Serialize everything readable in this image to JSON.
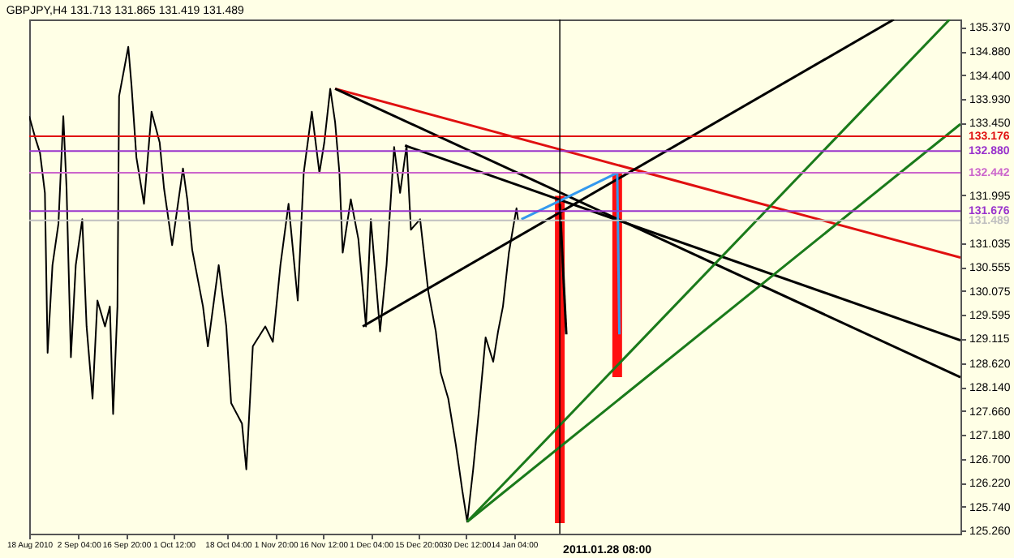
{
  "chart_data": {
    "type": "line",
    "title": "GBPJPY,H4 131.713 131.865 131.419 131.489",
    "xlim": [
      "2010-08-18T00:00",
      "2011-05-31T16:00"
    ],
    "ylim": [
      125.2,
      135.52
    ],
    "xticks": [
      {
        "value": "2010-08-18T00:00",
        "label": "18 Aug 2010"
      },
      {
        "value": "2010-09-02T04:00",
        "label": "2 Sep 04:00"
      },
      {
        "value": "2010-09-16T20:00",
        "label": "16 Sep 20:00"
      },
      {
        "value": "2010-10-01T12:00",
        "label": "1 Oct 12:00"
      },
      {
        "value": "2010-10-18T04:00",
        "label": "18 Oct 04:00"
      },
      {
        "value": "2010-11-01T20:00",
        "label": "1 Nov 20:00"
      },
      {
        "value": "2010-11-16T12:00",
        "label": "16 Nov 12:00"
      },
      {
        "value": "2010-12-01T04:00",
        "label": "1 Dec 04:00"
      },
      {
        "value": "2010-12-15T20:00",
        "label": "15 Dec 20:00"
      },
      {
        "value": "2010-12-30T12:00",
        "label": "30 Dec 12:00"
      },
      {
        "value": "2011-01-14T04:00",
        "label": "14 Jan 04:00"
      }
    ],
    "yticks": [
      {
        "value": 135.37,
        "label": "135.370"
      },
      {
        "value": 134.88,
        "label": "134.880"
      },
      {
        "value": 134.4,
        "label": "134.400"
      },
      {
        "value": 133.93,
        "label": "133.930"
      },
      {
        "value": 133.45,
        "label": "133.450"
      },
      {
        "value": 131.995,
        "label": "131.995"
      },
      {
        "value": 131.035,
        "label": "131.035"
      },
      {
        "value": 130.555,
        "label": "130.555"
      },
      {
        "value": 130.075,
        "label": "130.075"
      },
      {
        "value": 129.595,
        "label": "129.595"
      },
      {
        "value": 129.115,
        "label": "129.115"
      },
      {
        "value": 128.62,
        "label": "128.620"
      },
      {
        "value": 128.14,
        "label": "128.140"
      },
      {
        "value": 127.66,
        "label": "127.660"
      },
      {
        "value": 127.18,
        "label": "127.180"
      },
      {
        "value": 126.7,
        "label": "126.700"
      },
      {
        "value": 126.22,
        "label": "126.220"
      },
      {
        "value": 125.74,
        "label": "125.740"
      },
      {
        "value": 125.26,
        "label": "125.260"
      }
    ],
    "grid": false,
    "line_style": "solid",
    "marker": "none",
    "series": [
      {
        "color": "#000000",
        "x": [
          "2010-08-18T00:00",
          "2010-08-19T20:00",
          "2010-08-21T08:00",
          "2010-08-22T20:00",
          "2010-08-23T16:00",
          "2010-08-25T04:00",
          "2010-08-27T00:00",
          "2010-08-28T12:00",
          "2010-08-29T12:00",
          "2010-08-30T20:00",
          "2010-09-01T08:00",
          "2010-09-03T08:00",
          "2010-09-04T16:00",
          "2010-09-06T12:00",
          "2010-09-08T00:00",
          "2010-09-10T08:00",
          "2010-09-11T20:00",
          "2010-09-12T20:00",
          "2010-09-14T04:00",
          "2010-09-14T16:00",
          "2010-09-17T12:00",
          "2010-09-18T12:00",
          "2010-09-20T00:00",
          "2010-09-22T08:00",
          "2010-09-24T16:00",
          "2010-09-27T04:00",
          "2010-09-28T12:00",
          "2010-10-01T00:00",
          "2010-10-04T08:00",
          "2010-10-05T16:00",
          "2010-10-07T04:00",
          "2010-10-10T12:00",
          "2010-10-12T00:00",
          "2010-10-15T08:00",
          "2010-10-17T16:00",
          "2010-10-19T04:00",
          "2010-10-22T12:00",
          "2010-10-23T20:00",
          "2010-10-25T20:00",
          "2010-10-29T16:00",
          "2010-11-01T00:00",
          "2010-11-03T08:00",
          "2010-11-05T20:00",
          "2010-11-08T16:00",
          "2010-11-10T12:00",
          "2010-11-13T00:00",
          "2010-11-15T08:00",
          "2010-11-16T20:00",
          "2010-11-18T16:00",
          "2010-11-20T04:00",
          "2010-11-21T12:00",
          "2010-11-22T12:00",
          "2010-11-25T00:00",
          "2010-11-27T08:00",
          "2010-11-29T16:00",
          "2010-12-01T04:00",
          "2010-12-04T00:00",
          "2010-12-06T00:00",
          "2010-12-08T08:00",
          "2010-12-10T04:00",
          "2010-12-12T04:00",
          "2010-12-13T12:00",
          "2010-12-16T08:00",
          "2010-12-18T20:00",
          "2010-12-21T04:00",
          "2010-12-22T16:00",
          "2010-12-25T00:00",
          "2010-12-27T08:00",
          "2010-12-29T08:00",
          "2010-12-30T20:00",
          "2011-01-01T16:00",
          "2011-01-03T12:00",
          "2011-01-05T12:00",
          "2011-01-07T20:00",
          "2011-01-09T08:00",
          "2011-01-10T20:00",
          "2011-01-12T16:00",
          "2011-01-14T04:00",
          "2011-01-15T00:00",
          "2011-01-15T12:00"
        ],
        "values": [
          133.58,
          133.15,
          132.84,
          132.04,
          128.83,
          130.59,
          131.42,
          133.58,
          132.13,
          128.74,
          130.59,
          131.51,
          129.36,
          127.91,
          129.88,
          129.36,
          129.76,
          127.6,
          129.76,
          133.98,
          134.97,
          134.19,
          132.75,
          131.82,
          133.67,
          133.05,
          132.13,
          130.99,
          132.53,
          131.91,
          130.9,
          129.76,
          128.96,
          130.59,
          129.36,
          127.82,
          127.41,
          126.49,
          128.96,
          129.36,
          129.05,
          130.59,
          131.82,
          129.88,
          132.44,
          133.67,
          132.44,
          133.05,
          134.13,
          133.46,
          132.44,
          130.84,
          131.91,
          131.11,
          129.36,
          131.51,
          129.26,
          130.59,
          132.96,
          132.04,
          132.99,
          131.3,
          131.51,
          130.07,
          129.26,
          128.43,
          127.91,
          126.98,
          126.06,
          125.44,
          126.49,
          127.72,
          129.14,
          128.65,
          129.26,
          129.76,
          130.84,
          131.42,
          131.73,
          131.49
        ]
      },
      {
        "type": "line",
        "color": "#e01010",
        "x": [
          "2010-11-20T04:00",
          "2011-05-31T16:00"
        ],
        "values": [
          134.13,
          130.74
        ]
      },
      {
        "type": "line",
        "color": "#000000",
        "x": [
          "2010-11-20T04:00",
          "2011-05-31T16:00"
        ],
        "values": [
          134.13,
          128.34
        ]
      },
      {
        "type": "line",
        "color": "#000000",
        "x": [
          "2010-12-11T16:00",
          "2011-05-31T16:00"
        ],
        "values": [
          132.99,
          129.08
        ]
      },
      {
        "type": "line",
        "color": "#000000",
        "x": [
          "2010-11-28T16:00",
          "2011-05-11T04:00"
        ],
        "values": [
          129.36,
          135.52
        ]
      },
      {
        "type": "line",
        "color": "#1a7a1a",
        "x": [
          "2010-12-30T20:00",
          "2011-05-31T16:00"
        ],
        "values": [
          125.44,
          133.42
        ]
      },
      {
        "type": "line",
        "color": "#1a7a1a",
        "x": [
          "2010-12-30T20:00",
          "2011-05-28T08:00"
        ],
        "values": [
          125.44,
          135.52
        ]
      },
      {
        "type": "line",
        "color": "#3399ee",
        "x": [
          "2011-01-16T12:00",
          "2011-01-28T08:00",
          "2011-02-15T00:00"
        ],
        "values": [
          131.51,
          131.88,
          132.44
        ]
      },
      {
        "type": "line",
        "color": "#3399ee",
        "x": [
          "2011-02-15T00:00",
          "2011-02-15T16:00"
        ],
        "values": [
          132.44,
          129.2
        ]
      },
      {
        "type": "line",
        "color": "#000000",
        "x": [
          "2011-01-28T08:00",
          "2011-01-30T08:00"
        ],
        "values": [
          131.82,
          129.2
        ]
      },
      {
        "type": "bar",
        "color": "#ff1010",
        "x": [
          "2011-01-28T08:00",
          "2011-02-15T00:00"
        ],
        "base": [
          125.41,
          128.34
        ],
        "values": [
          6.57,
          4.1
        ]
      }
    ],
    "ref_lines": [
      {
        "axis": "y",
        "value": 133.176,
        "label": "133.176",
        "color": "#e01010"
      },
      {
        "axis": "y",
        "value": 132.88,
        "label": "132.880",
        "color": "#9933cc"
      },
      {
        "axis": "y",
        "value": 132.442,
        "label": "132.442",
        "color": "#cc66cc"
      },
      {
        "axis": "y",
        "value": 131.676,
        "label": "131.676",
        "color": "#9933cc"
      },
      {
        "axis": "y",
        "value": 131.489,
        "label": "131.489",
        "color": "#c0c0c0"
      },
      {
        "axis": "x",
        "value": "2011-01-28T08:00",
        "label": "2011.01.28 08:00",
        "color": "#000000"
      }
    ]
  }
}
